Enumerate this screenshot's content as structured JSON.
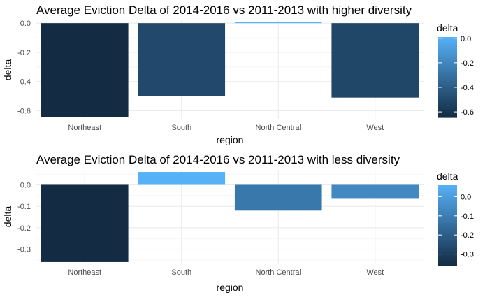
{
  "chart_data": [
    {
      "type": "bar",
      "title": "Average Eviction Delta of 2014-2016 vs 2011-2013 with higher diversity",
      "xlabel": "region",
      "ylabel": "delta",
      "categories": [
        "Northeast",
        "South",
        "North Central",
        "West"
      ],
      "values": [
        -0.645,
        -0.5,
        0.01,
        -0.51
      ],
      "ylim": [
        -0.66,
        0.02
      ],
      "yticks": [
        0.0,
        -0.2,
        -0.4,
        -0.6
      ],
      "ytick_labels": [
        "0.0",
        "-0.2",
        "-0.4",
        "-0.6"
      ],
      "grid": true,
      "legend": {
        "title": "delta",
        "position": "right",
        "type": "colorbar",
        "range": [
          -0.645,
          0.01
        ],
        "ticks": [
          0.0,
          -0.2,
          -0.4,
          -0.6
        ],
        "tick_labels": [
          "0.0",
          "-0.2",
          "-0.4",
          "-0.6"
        ]
      }
    },
    {
      "type": "bar",
      "title": "Average Eviction Delta of 2014-2016 vs 2011-2013 with less diversity",
      "xlabel": "region",
      "ylabel": "delta",
      "categories": [
        "Northeast",
        "South",
        "North Central",
        "West"
      ],
      "values": [
        -0.36,
        0.06,
        -0.12,
        -0.065
      ],
      "ylim": [
        -0.37,
        0.07
      ],
      "yticks": [
        0.0,
        -0.1,
        -0.2,
        -0.3
      ],
      "ytick_labels": [
        "0.0",
        "-0.1",
        "-0.2",
        "-0.3"
      ],
      "grid": true,
      "legend": {
        "title": "delta",
        "position": "right",
        "type": "colorbar",
        "range": [
          -0.36,
          0.06
        ],
        "ticks": [
          0.0,
          -0.1,
          -0.2,
          -0.3
        ],
        "tick_labels": [
          "0.0",
          "-0.1",
          "-0.2",
          "-0.3"
        ]
      }
    }
  ],
  "colors": {
    "low": "#132B43",
    "high": "#56B1F7",
    "grid": "#ebebeb"
  }
}
